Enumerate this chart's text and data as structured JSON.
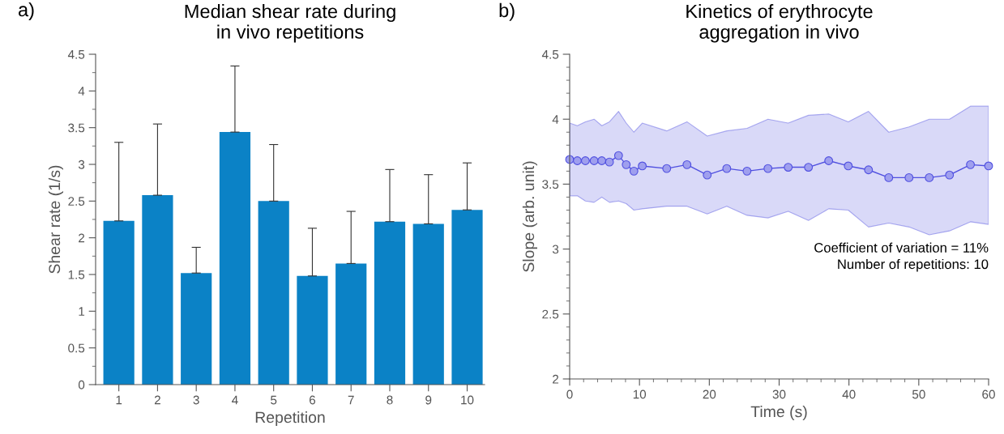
{
  "chart_data": [
    {
      "type": "bar",
      "title": "Median shear rate during\nin vivo repetitions",
      "xlabel": "Repetition",
      "ylabel": "Shear rate (1/s)",
      "categories": [
        "1",
        "2",
        "3",
        "4",
        "5",
        "6",
        "7",
        "8",
        "9",
        "10"
      ],
      "values": [
        2.23,
        2.58,
        1.52,
        3.44,
        2.5,
        1.48,
        1.65,
        2.22,
        2.19,
        2.38
      ],
      "errors": [
        [
          2.23,
          3.3
        ],
        [
          2.58,
          3.55
        ],
        [
          1.52,
          1.87
        ],
        [
          3.44,
          4.34
        ],
        [
          2.5,
          3.27
        ],
        [
          1.48,
          2.13
        ],
        [
          1.65,
          2.36
        ],
        [
          2.22,
          2.93
        ],
        [
          2.19,
          2.86
        ],
        [
          2.38,
          3.02
        ]
      ],
      "color": "#0b82c6",
      "ylim": [
        0,
        4.5
      ],
      "yticks": [
        0,
        0.5,
        1,
        1.5,
        2,
        2.5,
        3,
        3.5,
        4,
        4.5
      ],
      "grid": false,
      "legend": false,
      "annotations": [
        "a)"
      ]
    },
    {
      "type": "line",
      "title": "Kinetics of erythrocyte\naggregation in vivo",
      "xlabel": "Time (s)",
      "ylabel": "Slope (arb. unit)",
      "x": [
        0,
        1.1,
        2.25,
        3.5,
        4.6,
        5.7,
        7.0,
        8.1,
        9.2,
        10.4,
        13.9,
        16.8,
        19.7,
        22.5,
        25.4,
        28.4,
        31.3,
        34.2,
        37.1,
        39.9,
        42.8,
        45.7,
        48.6,
        51.5,
        54.4,
        57.4,
        60
      ],
      "series": [
        {
          "color": "#5050e0",
          "values": [
            3.69,
            3.68,
            3.68,
            3.68,
            3.68,
            3.67,
            3.72,
            3.65,
            3.6,
            3.64,
            3.62,
            3.65,
            3.57,
            3.62,
            3.6,
            3.62,
            3.63,
            3.63,
            3.68,
            3.64,
            3.61,
            3.55,
            3.55,
            3.55,
            3.57,
            3.65,
            3.64
          ],
          "upper": [
            3.97,
            3.95,
            3.98,
            4.0,
            3.95,
            3.98,
            4.06,
            3.97,
            3.9,
            3.97,
            3.91,
            3.98,
            3.87,
            3.91,
            3.93,
            4.0,
            3.97,
            4.03,
            4.04,
            3.98,
            4.06,
            3.9,
            3.94,
            4.0,
            4.0,
            4.1,
            4.1
          ],
          "lower": [
            3.41,
            3.41,
            3.37,
            3.36,
            3.4,
            3.36,
            3.37,
            3.35,
            3.3,
            3.31,
            3.33,
            3.33,
            3.27,
            3.33,
            3.26,
            3.24,
            3.29,
            3.22,
            3.31,
            3.3,
            3.17,
            3.2,
            3.17,
            3.11,
            3.14,
            3.21,
            3.19
          ]
        }
      ],
      "marker": "circle",
      "line_style": "solid",
      "grid": false,
      "legend": false,
      "xlim": [
        0,
        60
      ],
      "xticks": [
        0,
        10,
        20,
        30,
        40,
        50,
        60
      ],
      "ylim": [
        2,
        4.5
      ],
      "yticks": [
        2,
        2.5,
        3,
        3.5,
        4,
        4.5
      ],
      "annotations": [
        "b)",
        "Coefficient of variation = 11%\nNumber of repetitions: 10"
      ]
    }
  ]
}
